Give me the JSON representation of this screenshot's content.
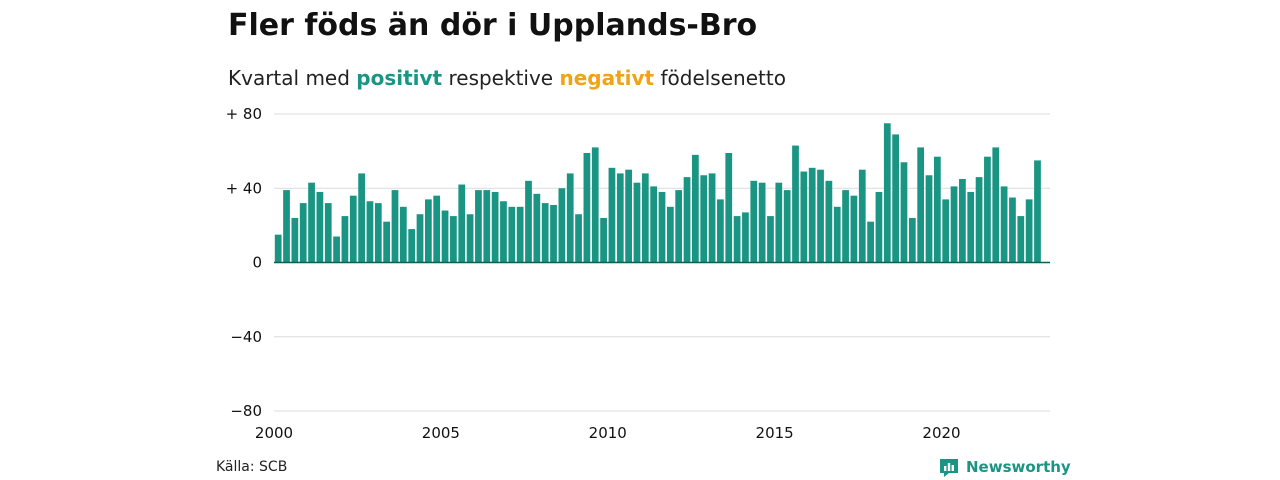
{
  "title": "Fler föds än dör i Upplands-Bro",
  "subtitle": {
    "prefix": "Kvartal med ",
    "positive": "positivt",
    "middle": " respektive ",
    "negative": "negativt",
    "suffix": " födelsenetto"
  },
  "source": "Källa: SCB",
  "brand": "Newsworthy",
  "colors": {
    "positive": "#1a9583",
    "negative": "#f0a31a"
  },
  "chart_data": {
    "type": "bar",
    "xlim": [
      2000,
      2023.25
    ],
    "ylim": [
      -80,
      80
    ],
    "y_ticks": [
      {
        "value": 80,
        "label": "+ 80"
      },
      {
        "value": 40,
        "label": "+ 40"
      },
      {
        "value": 0,
        "label": "0"
      },
      {
        "value": -40,
        "label": "−40"
      },
      {
        "value": -80,
        "label": "−80"
      }
    ],
    "x_ticks": [
      {
        "value": 2000,
        "label": "2000"
      },
      {
        "value": 2005,
        "label": "2005"
      },
      {
        "value": 2010,
        "label": "2010"
      },
      {
        "value": 2015,
        "label": "2015"
      },
      {
        "value": 2020,
        "label": "2020"
      }
    ],
    "start_year": 2000,
    "periods_per_year": 4,
    "values": [
      15,
      39,
      24,
      32,
      43,
      38,
      32,
      14,
      25,
      36,
      48,
      33,
      32,
      22,
      39,
      30,
      18,
      26,
      34,
      36,
      28,
      25,
      42,
      26,
      39,
      39,
      38,
      33,
      30,
      30,
      44,
      37,
      32,
      31,
      40,
      48,
      26,
      59,
      62,
      24,
      51,
      48,
      50,
      43,
      48,
      41,
      38,
      30,
      39,
      46,
      58,
      47,
      48,
      34,
      59,
      25,
      27,
      44,
      43,
      25,
      43,
      39,
      63,
      49,
      51,
      50,
      44,
      30,
      39,
      36,
      50,
      22,
      38,
      75,
      69,
      54,
      24,
      62,
      47,
      57,
      34,
      41,
      45,
      38,
      46,
      57,
      62,
      41,
      35,
      25,
      34,
      55
    ]
  }
}
